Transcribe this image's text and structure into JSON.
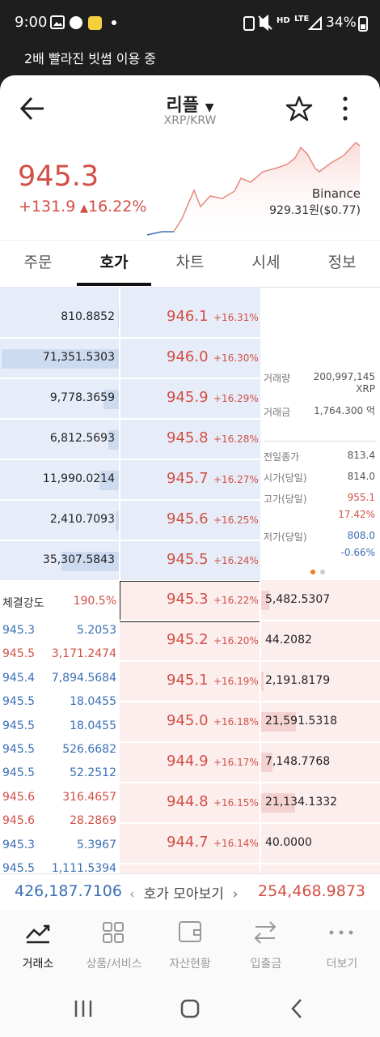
{
  "status_bar": {
    "time": "9:00",
    "quality": "HD",
    "network": "LTE",
    "battery": "34%"
  },
  "banner": "2배 빨라진 빗썸 이용 중",
  "header": {
    "title": "리플",
    "subtitle": "XRP/KRW"
  },
  "price": {
    "current": "945.3",
    "change": "+131.9",
    "change_rate": "16.22%",
    "exchange": "Binance",
    "exchange_price": "929.31원($0.77)"
  },
  "tabs": [
    "주문",
    "호가",
    "차트",
    "시세",
    "정보"
  ],
  "order_book": {
    "asks": [
      {
        "volume": {
          "value": 810.8852,
          "label": "810.8852"
        },
        "price": "946.1",
        "rate": "+16.31%"
      },
      {
        "volume": {
          "value": 71351.5303,
          "label": "71,351.5303"
        },
        "price": "946.0",
        "rate": "+16.30%"
      },
      {
        "volume": {
          "value": 9778.3659,
          "label": "9,778.3659"
        },
        "price": "945.9",
        "rate": "+16.29%"
      },
      {
        "volume": {
          "value": 6812.5693,
          "label": "6,812.5693"
        },
        "price": "945.8",
        "rate": "+16.28%"
      },
      {
        "volume": {
          "value": 11990.0214,
          "label": "11,990.0214"
        },
        "price": "945.7",
        "rate": "+16.27%"
      },
      {
        "volume": {
          "value": 2410.7093,
          "label": "2,410.7093"
        },
        "price": "945.6",
        "rate": "+16.25%"
      },
      {
        "volume": {
          "value": 35307.5843,
          "label": "35,307.5843"
        },
        "price": "945.5",
        "rate": "+16.24%"
      }
    ],
    "bids": [
      {
        "volume": {
          "value": 5482.5307,
          "label": "5,482.5307"
        },
        "price": "945.3",
        "rate": "+16.22%"
      },
      {
        "volume": {
          "value": 44.2082,
          "label": "44.2082"
        },
        "price": "945.2",
        "rate": "+16.20%"
      },
      {
        "volume": {
          "value": 2191.8179,
          "label": "2,191.8179"
        },
        "price": "945.1",
        "rate": "+16.19%"
      },
      {
        "volume": {
          "value": 21591.5318,
          "label": "21,591.5318"
        },
        "price": "945.0",
        "rate": "+16.18%"
      },
      {
        "volume": {
          "value": 7148.7768,
          "label": "7,148.7768"
        },
        "price": "944.9",
        "rate": "+16.17%"
      },
      {
        "volume": {
          "value": 21134.1332,
          "label": "21,134.1332"
        },
        "price": "944.8",
        "rate": "+16.15%"
      },
      {
        "volume": {
          "value": 40,
          "label": "40.0000"
        },
        "price": "944.7",
        "rate": "+16.14%"
      }
    ]
  },
  "market_info": [
    {
      "label": "거래량",
      "value": "200,997,145 XRP"
    },
    {
      "label": "거래금",
      "value": "1,764.300 억"
    },
    {
      "label": "전일종가",
      "value": "813.4"
    },
    {
      "label": "시가(당일)",
      "value": "814.0"
    },
    {
      "label": "고가(당일)",
      "value": "955.1",
      "sub": "17.42%",
      "color": "#d24f45"
    },
    {
      "label": "저가(당일)",
      "value": "808.0",
      "sub": "-0.66%",
      "color": "#3b6fb6"
    }
  ],
  "strength": {
    "label": "체결강도",
    "value": "190.5%"
  },
  "trades": [
    {
      "price": "945.3",
      "volume": "5.2053",
      "color": "#3b6fb6"
    },
    {
      "price": "945.5",
      "volume": "3,171.2474",
      "color": "#d24f45"
    },
    {
      "price": "945.4",
      "volume": "7,894.5684",
      "color": "#3b6fb6"
    },
    {
      "price": "945.5",
      "volume": "18.0455",
      "color": "#3b6fb6"
    },
    {
      "price": "945.5",
      "volume": "18.0455",
      "color": "#3b6fb6"
    },
    {
      "price": "945.5",
      "volume": "526.6682",
      "color": "#3b6fb6"
    },
    {
      "price": "945.5",
      "volume": "52.2512",
      "color": "#3b6fb6"
    },
    {
      "price": "945.6",
      "volume": "316.4657",
      "color": "#d24f45"
    },
    {
      "price": "945.6",
      "volume": "28.2869",
      "color": "#d24f45"
    },
    {
      "price": "945.3",
      "volume": "5.3967",
      "color": "#3b6fb6"
    },
    {
      "price": "945.5",
      "volume": "1,111.5394",
      "color": "#3b6fb6"
    }
  ],
  "totals": {
    "ask": "426,187.7106",
    "label": "호가 모아보기",
    "bid": "254,468.9873"
  },
  "nav": [
    "거래소",
    "상품/서비스",
    "자산현황",
    "입출금",
    "더보기"
  ]
}
